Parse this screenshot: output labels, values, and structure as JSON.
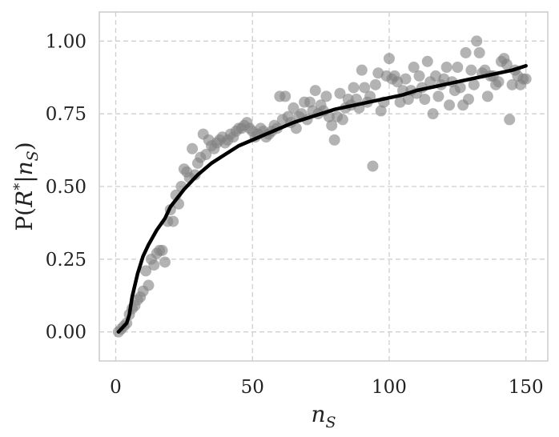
{
  "chart_data": {
    "type": "scatter",
    "title": "",
    "xlabel": "n_S",
    "ylabel": "P(R*|n_S)",
    "xlim": [
      -6,
      158
    ],
    "ylim": [
      -0.1,
      1.1
    ],
    "xticks": [
      0,
      50,
      100,
      150
    ],
    "yticks": [
      0.0,
      0.25,
      0.5,
      0.75,
      1.0
    ],
    "xtick_labels": [
      "0",
      "50",
      "100",
      "150"
    ],
    "ytick_labels": [
      "0.00",
      "0.25",
      "0.50",
      "0.75",
      "1.00"
    ],
    "grid": true,
    "legend": "none",
    "colors": {
      "scatter": "#808080",
      "curve": "#000000",
      "grid": "#cfcfcf",
      "frame": "#cccccc"
    },
    "series": [
      {
        "type": "scatter",
        "x": [
          1,
          2,
          3,
          4,
          5,
          6,
          7,
          8,
          9,
          10,
          11,
          12,
          13,
          14,
          15,
          16,
          17,
          18,
          19,
          20,
          21,
          22,
          23,
          24,
          25,
          26,
          27,
          28,
          29,
          30,
          31,
          32,
          33,
          34,
          35,
          36,
          37,
          38,
          39,
          40,
          41,
          42,
          43,
          44,
          45,
          46,
          47,
          48,
          49,
          50,
          51,
          52,
          53,
          54,
          55,
          56,
          57,
          58,
          59,
          60,
          61,
          62,
          63,
          64,
          65,
          66,
          67,
          68,
          69,
          70,
          71,
          72,
          73,
          74,
          75,
          76,
          77,
          78,
          79,
          80,
          81,
          82,
          83,
          84,
          85,
          86,
          87,
          88,
          89,
          90,
          91,
          92,
          93,
          94,
          95,
          96,
          97,
          98,
          99,
          100,
          101,
          102,
          103,
          104,
          105,
          106,
          107,
          108,
          109,
          110,
          111,
          112,
          113,
          114,
          115,
          116,
          117,
          118,
          119,
          120,
          121,
          122,
          123,
          124,
          125,
          126,
          127,
          128,
          129,
          130,
          131,
          132,
          133,
          134,
          135,
          136,
          137,
          138,
          139,
          140,
          141,
          142,
          143,
          144,
          145,
          146,
          147,
          148,
          149,
          150
        ],
        "y": [
          0.0,
          0.01,
          0.02,
          0.03,
          0.06,
          0.08,
          0.09,
          0.11,
          0.12,
          0.14,
          0.21,
          0.16,
          0.25,
          0.23,
          0.27,
          0.28,
          0.28,
          0.24,
          0.38,
          0.42,
          0.38,
          0.47,
          0.44,
          0.5,
          0.56,
          0.55,
          0.53,
          0.63,
          0.54,
          0.58,
          0.6,
          0.68,
          0.61,
          0.66,
          0.64,
          0.63,
          0.65,
          0.66,
          0.67,
          0.65,
          0.66,
          0.68,
          0.67,
          0.69,
          0.7,
          0.7,
          0.71,
          0.72,
          0.7,
          0.69,
          0.67,
          0.68,
          0.7,
          0.69,
          0.67,
          0.68,
          0.69,
          0.71,
          0.7,
          0.81,
          0.73,
          0.81,
          0.74,
          0.72,
          0.77,
          0.7,
          0.74,
          0.75,
          0.79,
          0.73,
          0.79,
          0.76,
          0.83,
          0.75,
          0.78,
          0.76,
          0.81,
          0.74,
          0.71,
          0.66,
          0.74,
          0.82,
          0.73,
          0.77,
          0.8,
          0.78,
          0.84,
          0.8,
          0.77,
          0.9,
          0.84,
          0.79,
          0.81,
          0.57,
          0.85,
          0.89,
          0.76,
          0.79,
          0.88,
          0.94,
          0.87,
          0.88,
          0.86,
          0.79,
          0.83,
          0.87,
          0.8,
          0.83,
          0.91,
          0.82,
          0.88,
          0.84,
          0.8,
          0.93,
          0.86,
          0.75,
          0.88,
          0.81,
          0.85,
          0.87,
          0.91,
          0.78,
          0.86,
          0.83,
          0.91,
          0.84,
          0.78,
          0.96,
          0.8,
          0.9,
          0.85,
          1.0,
          0.96,
          0.89,
          0.9,
          0.81,
          0.88,
          0.88,
          0.85,
          0.86,
          0.93,
          0.94,
          0.92,
          0.73,
          0.85,
          0.9,
          0.88,
          0.85,
          0.87,
          0.87
        ]
      },
      {
        "type": "line",
        "x": [
          1,
          2,
          3,
          4,
          5,
          6,
          8,
          10,
          12,
          15,
          18,
          20,
          25,
          30,
          35,
          40,
          45,
          50,
          55,
          60,
          65,
          70,
          75,
          80,
          85,
          90,
          95,
          100,
          105,
          110,
          115,
          120,
          125,
          130,
          135,
          140,
          145,
          150
        ],
        "y": [
          0.0,
          0.01,
          0.02,
          0.03,
          0.06,
          0.12,
          0.2,
          0.26,
          0.3,
          0.35,
          0.39,
          0.43,
          0.49,
          0.54,
          0.58,
          0.61,
          0.64,
          0.66,
          0.68,
          0.7,
          0.72,
          0.735,
          0.75,
          0.765,
          0.775,
          0.785,
          0.795,
          0.805,
          0.815,
          0.83,
          0.84,
          0.85,
          0.86,
          0.87,
          0.88,
          0.89,
          0.9,
          0.915
        ]
      }
    ]
  }
}
